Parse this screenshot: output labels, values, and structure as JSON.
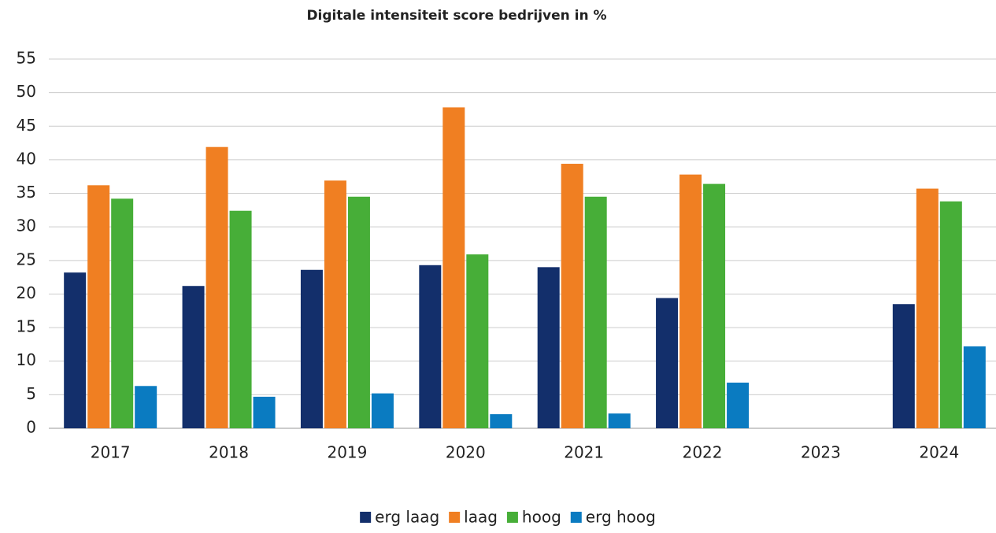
{
  "chart_data": {
    "type": "bar",
    "title": "Digitale intensiteit score bedrijven in %",
    "categories": [
      "2017",
      "2018",
      "2019",
      "2020",
      "2021",
      "2022",
      "2023",
      "2024"
    ],
    "series": [
      {
        "name": "erg laag",
        "color": "#132f6b",
        "values": [
          23.2,
          21.2,
          23.6,
          24.3,
          24.0,
          19.4,
          null,
          18.5
        ]
      },
      {
        "name": "laag",
        "color": "#f07f22",
        "values": [
          36.2,
          41.9,
          36.9,
          47.8,
          39.4,
          37.8,
          null,
          35.7
        ]
      },
      {
        "name": "hoog",
        "color": "#47ae38",
        "values": [
          34.2,
          32.4,
          34.5,
          25.9,
          34.5,
          36.4,
          null,
          33.8
        ]
      },
      {
        "name": "erg hoog",
        "color": "#0a7bc1",
        "values": [
          6.3,
          4.7,
          5.2,
          2.1,
          2.2,
          6.8,
          null,
          12.2
        ]
      }
    ],
    "ylim": [
      0,
      55
    ],
    "yticks": [
      0,
      5,
      10,
      15,
      20,
      25,
      30,
      35,
      40,
      45,
      50,
      55
    ],
    "grid": true,
    "legend": "bottom"
  }
}
